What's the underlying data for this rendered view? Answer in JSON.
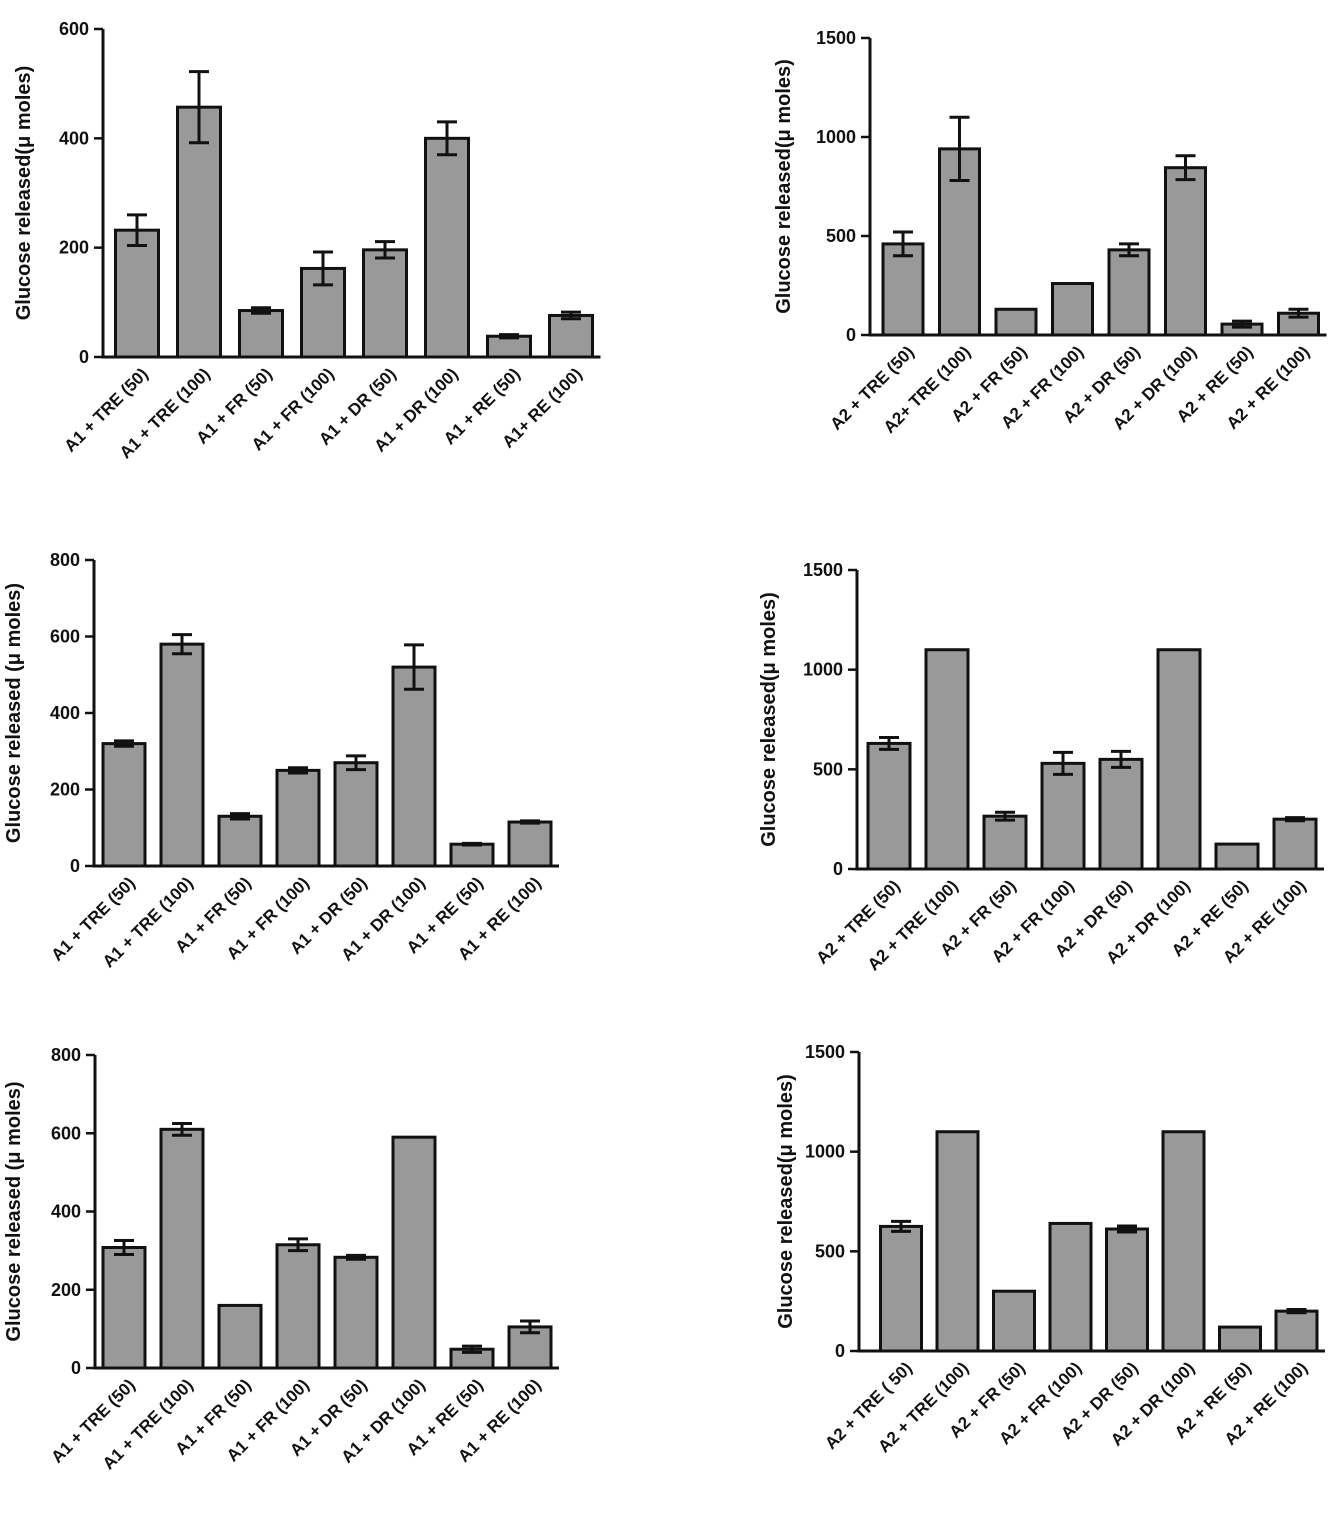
{
  "colors": {
    "bar_fill": "#999999",
    "bar_stroke": "#111111",
    "axis": "#111111"
  },
  "chart_data": [
    {
      "type": "bar",
      "ylabel": "Glucose released(μ moles)",
      "ylim": [
        0,
        600
      ],
      "yticks": [
        "0",
        "200",
        "400",
        "600"
      ],
      "categories": [
        "A1 + TRE (50)",
        "A1 + TRE (100)",
        "A1 + FR  (50)",
        "A1 + FR  (100)",
        "A1 + DR (50)",
        "A1 + DR (100)",
        "A1 + RE (50)",
        "A1+ RE (100)"
      ],
      "values": [
        232,
        457,
        85,
        162,
        196,
        400,
        38,
        76
      ],
      "errors": [
        28,
        65,
        5,
        30,
        15,
        30,
        3,
        6
      ]
    },
    {
      "type": "bar",
      "ylabel": "Glucose released(μ moles)",
      "ylim": [
        0,
        1500
      ],
      "yticks": [
        "0",
        "500",
        "1000",
        "1500"
      ],
      "categories": [
        "A2 + TRE (50)",
        "A2+ TRE (100)",
        "A2 + FR (50)",
        "A2 + FR (100)",
        "A2 + DR (50)",
        "A2 + DR (100)",
        "A2 + RE (50)",
        "A2 + RE (100)"
      ],
      "values": [
        460,
        940,
        130,
        260,
        430,
        845,
        55,
        110
      ],
      "errors": [
        60,
        160,
        0,
        0,
        30,
        60,
        15,
        20
      ]
    },
    {
      "type": "bar",
      "ylabel": "Glucose released (μ moles)",
      "ylim": [
        0,
        800
      ],
      "yticks": [
        "0",
        "200",
        "400",
        "600",
        "800"
      ],
      "categories": [
        "A1 + TRE (50)",
        "A1 + TRE (100)",
        "A1 + FR  (50)",
        "A1 + FR (100)",
        "A1 + DR (50)",
        "A1 + DR (100)",
        "A1 + RE (50)",
        "A1 + RE  (100)"
      ],
      "values": [
        320,
        580,
        130,
        250,
        270,
        520,
        57,
        115
      ],
      "errors": [
        7,
        25,
        7,
        7,
        18,
        58,
        2,
        3
      ]
    },
    {
      "type": "bar",
      "ylabel": "Glucose released(μ moles)",
      "ylim": [
        0,
        1500
      ],
      "yticks": [
        "0",
        "500",
        "1000",
        "1500"
      ],
      "categories": [
        "A2 + TRE (50)",
        "A2 + TRE (100)",
        "A2 + FR (50)",
        "A2 + FR (100)",
        "A2 + DR (50)",
        "A2 + DR (100)",
        "A2 + RE (50)",
        "A2 + RE (100)"
      ],
      "values": [
        630,
        1100,
        265,
        530,
        550,
        1100,
        125,
        250
      ],
      "errors": [
        30,
        0,
        20,
        55,
        40,
        0,
        0,
        8
      ]
    },
    {
      "type": "bar",
      "ylabel": "Glucose released (μ moles)",
      "ylim": [
        0,
        800
      ],
      "yticks": [
        "0",
        "200",
        "400",
        "600",
        "800"
      ],
      "categories": [
        "A1 + TRE (50)",
        "A1 + TRE (100)",
        "A1 + FR (50)",
        "A1 + FR (100)",
        "A1 + DR (50)",
        "A1 + DR (100)",
        "A1 + RE (50)",
        "A1 + RE (100)"
      ],
      "values": [
        308,
        610,
        160,
        315,
        283,
        590,
        48,
        105
      ],
      "errors": [
        18,
        15,
        0,
        15,
        5,
        0,
        8,
        15
      ]
    },
    {
      "type": "bar",
      "ylabel": "Glucose released(μ moles)",
      "ylim": [
        0,
        1500
      ],
      "yticks": [
        "0",
        "500",
        "1000",
        "1500"
      ],
      "categories": [
        "A2 + TRE ( 50)",
        "A2 + TRE (100)",
        "A2 + FR (50)",
        "A2 + FR (100)",
        "A2 + DR (50)",
        "A2 + DR (100)",
        "A2 + RE (50)",
        "A2 + RE (100)"
      ],
      "values": [
        625,
        1100,
        300,
        640,
        612,
        1100,
        120,
        200
      ],
      "errors": [
        25,
        0,
        0,
        0,
        15,
        0,
        0,
        8
      ]
    }
  ]
}
